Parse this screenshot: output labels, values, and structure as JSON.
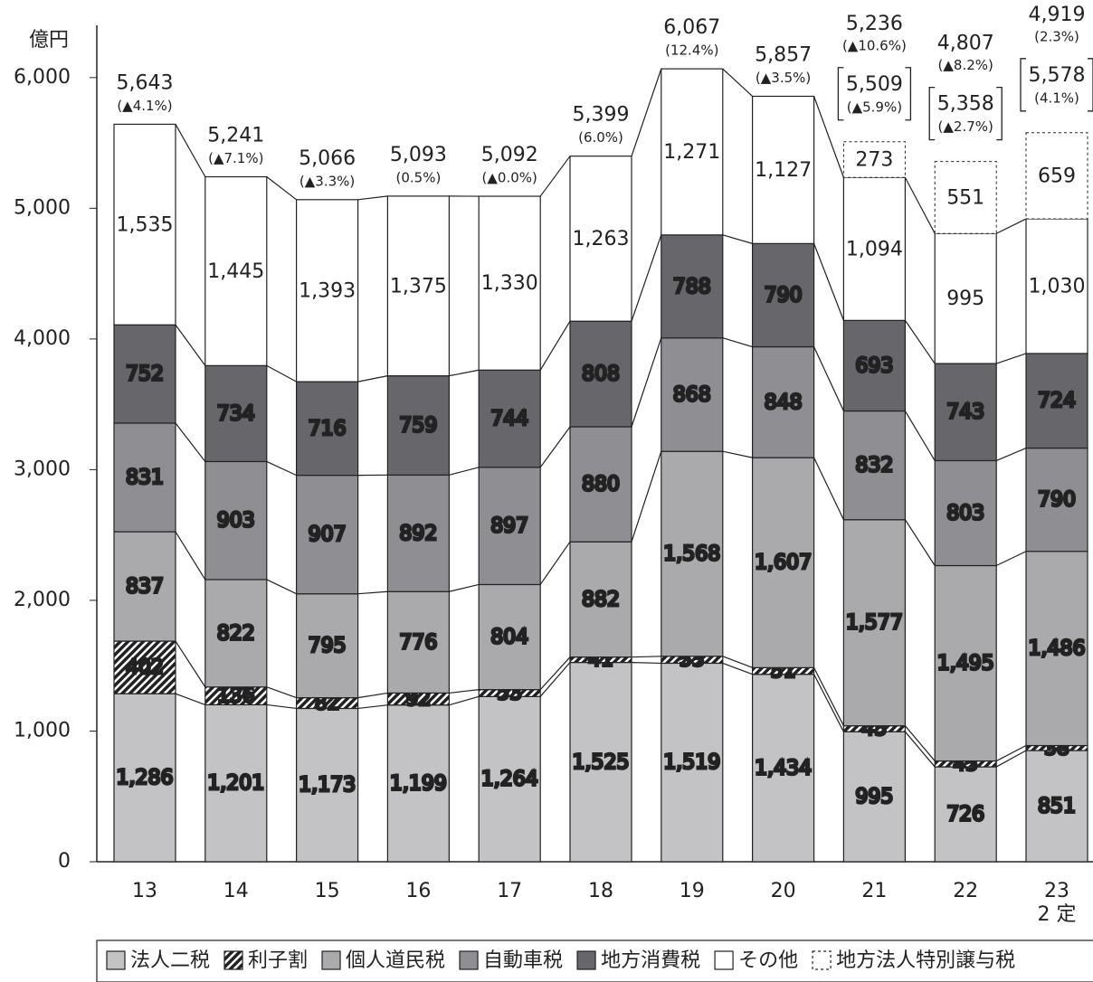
{
  "chart_data": {
    "type": "stacked-bar",
    "y_label": "億円",
    "categories": [
      "13",
      "14",
      "15",
      "16",
      "17",
      "18",
      "19",
      "20",
      "21",
      "22",
      "23\n2 定"
    ],
    "series": [
      {
        "name": "法人二税",
        "color": "#c3c3c5",
        "values": [
          1286,
          1201,
          1173,
          1199,
          1264,
          1525,
          1519,
          1434,
          995,
          726,
          851
        ],
        "value_labels": [
          "1,286",
          "1,201",
          "1,173",
          "1,199",
          "1,264",
          "1,525",
          "1,519",
          "1,434",
          "995",
          "726",
          "851"
        ]
      },
      {
        "name": "利子割",
        "color": "#222222",
        "pattern": "hatch",
        "values": [
          402,
          136,
          82,
          92,
          53,
          41,
          53,
          51,
          45,
          45,
          38
        ],
        "value_labels": [
          "402",
          "136",
          "82",
          "92",
          "53",
          "41",
          "53",
          "51",
          "45",
          "45",
          "38"
        ]
      },
      {
        "name": "個人道民税",
        "color": "#aaaaad",
        "values": [
          837,
          822,
          795,
          776,
          804,
          882,
          1568,
          1607,
          1577,
          1495,
          1486
        ],
        "value_labels": [
          "837",
          "822",
          "795",
          "776",
          "804",
          "882",
          "1,568",
          "1,607",
          "1,577",
          "1,495",
          "1,486"
        ]
      },
      {
        "name": "自動車税",
        "color": "#8f8f93",
        "values": [
          831,
          903,
          907,
          892,
          897,
          880,
          868,
          848,
          832,
          803,
          790
        ],
        "value_labels": [
          "831",
          "903",
          "907",
          "892",
          "897",
          "880",
          "868",
          "848",
          "832",
          "803",
          "790"
        ]
      },
      {
        "name": "地方消費税",
        "color": "#67676b",
        "values": [
          752,
          734,
          716,
          759,
          744,
          808,
          788,
          790,
          693,
          743,
          724
        ],
        "value_labels": [
          "752",
          "734",
          "716",
          "759",
          "744",
          "808",
          "788",
          "790",
          "693",
          "743",
          "724"
        ]
      },
      {
        "name": "その他",
        "color": "#ffffff",
        "values": [
          1535,
          1445,
          1393,
          1375,
          1330,
          1263,
          1271,
          1127,
          1094,
          995,
          1030
        ],
        "value_labels": [
          "1,535",
          "1,445",
          "1,393",
          "1,375",
          "1,330",
          "1,263",
          "1,271",
          "1,127",
          "1,094",
          "995",
          "1,030"
        ]
      },
      {
        "name": "地方法人特別譲与税",
        "color": "#ffffff",
        "border": "dashed",
        "values": [
          null,
          null,
          null,
          null,
          null,
          null,
          null,
          null,
          273,
          551,
          659
        ],
        "value_labels": [
          null,
          null,
          null,
          null,
          null,
          null,
          null,
          null,
          "273",
          "551",
          "659"
        ]
      }
    ],
    "totals": {
      "values": [
        5643,
        5241,
        5066,
        5093,
        5092,
        5399,
        6067,
        5857,
        5236,
        4807,
        4919
      ],
      "value_labels": [
        "5,643",
        "5,241",
        "5,066",
        "5,093",
        "5,092",
        "5,399",
        "6,067",
        "5,857",
        "5,236",
        "4,807",
        "4,919"
      ],
      "changes": [
        "(▲4.1%)",
        "(▲7.1%)",
        "(▲3.3%)",
        "(0.5%)",
        "(▲0.0%)",
        "(6.0%)",
        "(12.4%)",
        "(▲3.5%)",
        "(▲10.6%)",
        "(▲8.2%)",
        "(2.3%)"
      ]
    },
    "totals_with_special": {
      "values": [
        null,
        null,
        null,
        null,
        null,
        null,
        null,
        null,
        5509,
        5358,
        5578
      ],
      "value_labels": [
        null,
        null,
        null,
        null,
        null,
        null,
        null,
        null,
        "5,509",
        "5,358",
        "5,578"
      ],
      "changes": [
        null,
        null,
        null,
        null,
        null,
        null,
        null,
        null,
        "(▲5.9%)",
        "(▲2.7%)",
        "(4.1%)"
      ]
    },
    "ylim": [
      0,
      6400
    ],
    "yticks": [
      0,
      {
        "value": 1000,
        "label": "1,000"
      },
      {
        "value": 2000,
        "label": "2,000"
      },
      {
        "value": 3000,
        "label": "3,000"
      },
      {
        "value": 4000,
        "label": "4,000"
      },
      {
        "value": 5000,
        "label": "5,000"
      },
      {
        "value": 6000,
        "label": "6,000"
      }
    ]
  }
}
